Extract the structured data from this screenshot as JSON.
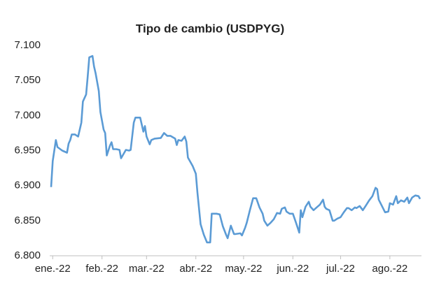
{
  "chart_data": {
    "type": "line",
    "title": "Tipo de cambio (USDPYG)",
    "x": [
      0,
      1,
      3,
      4,
      7,
      10,
      11,
      12,
      13,
      15,
      17,
      19,
      20,
      22,
      23,
      24,
      26,
      27,
      28,
      30,
      31,
      33,
      34,
      35,
      37,
      38,
      39,
      41,
      43,
      44,
      45,
      47,
      49,
      50,
      52,
      53,
      56,
      58,
      59,
      60,
      62,
      63,
      65,
      69,
      71,
      73,
      75,
      78,
      79,
      80,
      82,
      84,
      85,
      86,
      89,
      91,
      92,
      94,
      96,
      98,
      100,
      101,
      103,
      104,
      106,
      108,
      110,
      111,
      113,
      115,
      116,
      119,
      120,
      122,
      123,
      125,
      127,
      129,
      131,
      133,
      134,
      136,
      138,
      140,
      142,
      144,
      145,
      147,
      148,
      150,
      152,
      154,
      156,
      157,
      158,
      160,
      162,
      163,
      165,
      167,
      169,
      171,
      172,
      173,
      175,
      177,
      178,
      180,
      182,
      184,
      186,
      187,
      189,
      191,
      192,
      194,
      196,
      198,
      200,
      202,
      204,
      205,
      206,
      208,
      210,
      212,
      213,
      215,
      217,
      218,
      220,
      222,
      224,
      225,
      227,
      229,
      231,
      232
    ],
    "series": [
      {
        "name": "USDPYG",
        "color": "#5b9bd5",
        "values": [
          6898,
          6935,
          6965,
          6955,
          6950,
          6947,
          6960,
          6965,
          6973,
          6973,
          6970,
          6990,
          7020,
          7030,
          7055,
          7083,
          7085,
          7070,
          7060,
          7035,
          7005,
          6980,
          6975,
          6943,
          6957,
          6962,
          6952,
          6952,
          6951,
          6939,
          6943,
          6951,
          6950,
          6951,
          6990,
          6997,
          6997,
          6977,
          6985,
          6970,
          6959,
          6965,
          6967,
          6968,
          6975,
          6971,
          6971,
          6967,
          6958,
          6965,
          6964,
          6970,
          6963,
          6940,
          6928,
          6917,
          6890,
          6845,
          6830,
          6819,
          6819,
          6860,
          6860,
          6860,
          6859,
          6842,
          6830,
          6825,
          6843,
          6831,
          6831,
          6832,
          6829,
          6840,
          6847,
          6865,
          6882,
          6882,
          6869,
          6860,
          6850,
          6843,
          6847,
          6852,
          6861,
          6860,
          6867,
          6869,
          6863,
          6860,
          6860,
          6847,
          6833,
          6865,
          6855,
          6870,
          6877,
          6870,
          6865,
          6869,
          6873,
          6880,
          6870,
          6867,
          6865,
          6850,
          6850,
          6853,
          6855,
          6862,
          6868,
          6868,
          6865,
          6869,
          6868,
          6871,
          6865,
          6872,
          6879,
          6885,
          6897,
          6895,
          6880,
          6871,
          6862,
          6863,
          6875,
          6873,
          6885,
          6875,
          6879,
          6877,
          6883,
          6875,
          6883,
          6886,
          6885,
          6881
        ]
      }
    ],
    "xlim": [
      0,
      232
    ],
    "xticks": [
      {
        "value": 1,
        "label": "ene.-22"
      },
      {
        "value": 32,
        "label": "feb.-22"
      },
      {
        "value": 60,
        "label": "mar.-22"
      },
      {
        "value": 91,
        "label": "abr.-22"
      },
      {
        "value": 121,
        "label": "may.-22"
      },
      {
        "value": 152,
        "label": "jun.-22"
      },
      {
        "value": 182,
        "label": "jul.-22"
      },
      {
        "value": 213,
        "label": "ago.-22"
      }
    ],
    "ylim": [
      6800,
      7100
    ],
    "yticks": [
      {
        "value": 6800,
        "label": "6.800"
      },
      {
        "value": 6850,
        "label": "6.850"
      },
      {
        "value": 6900,
        "label": "6.900"
      },
      {
        "value": 6950,
        "label": "6.950"
      },
      {
        "value": 7000,
        "label": "7.000"
      },
      {
        "value": 7050,
        "label": "7.050"
      },
      {
        "value": 7100,
        "label": "7.100"
      }
    ],
    "grid": false
  }
}
